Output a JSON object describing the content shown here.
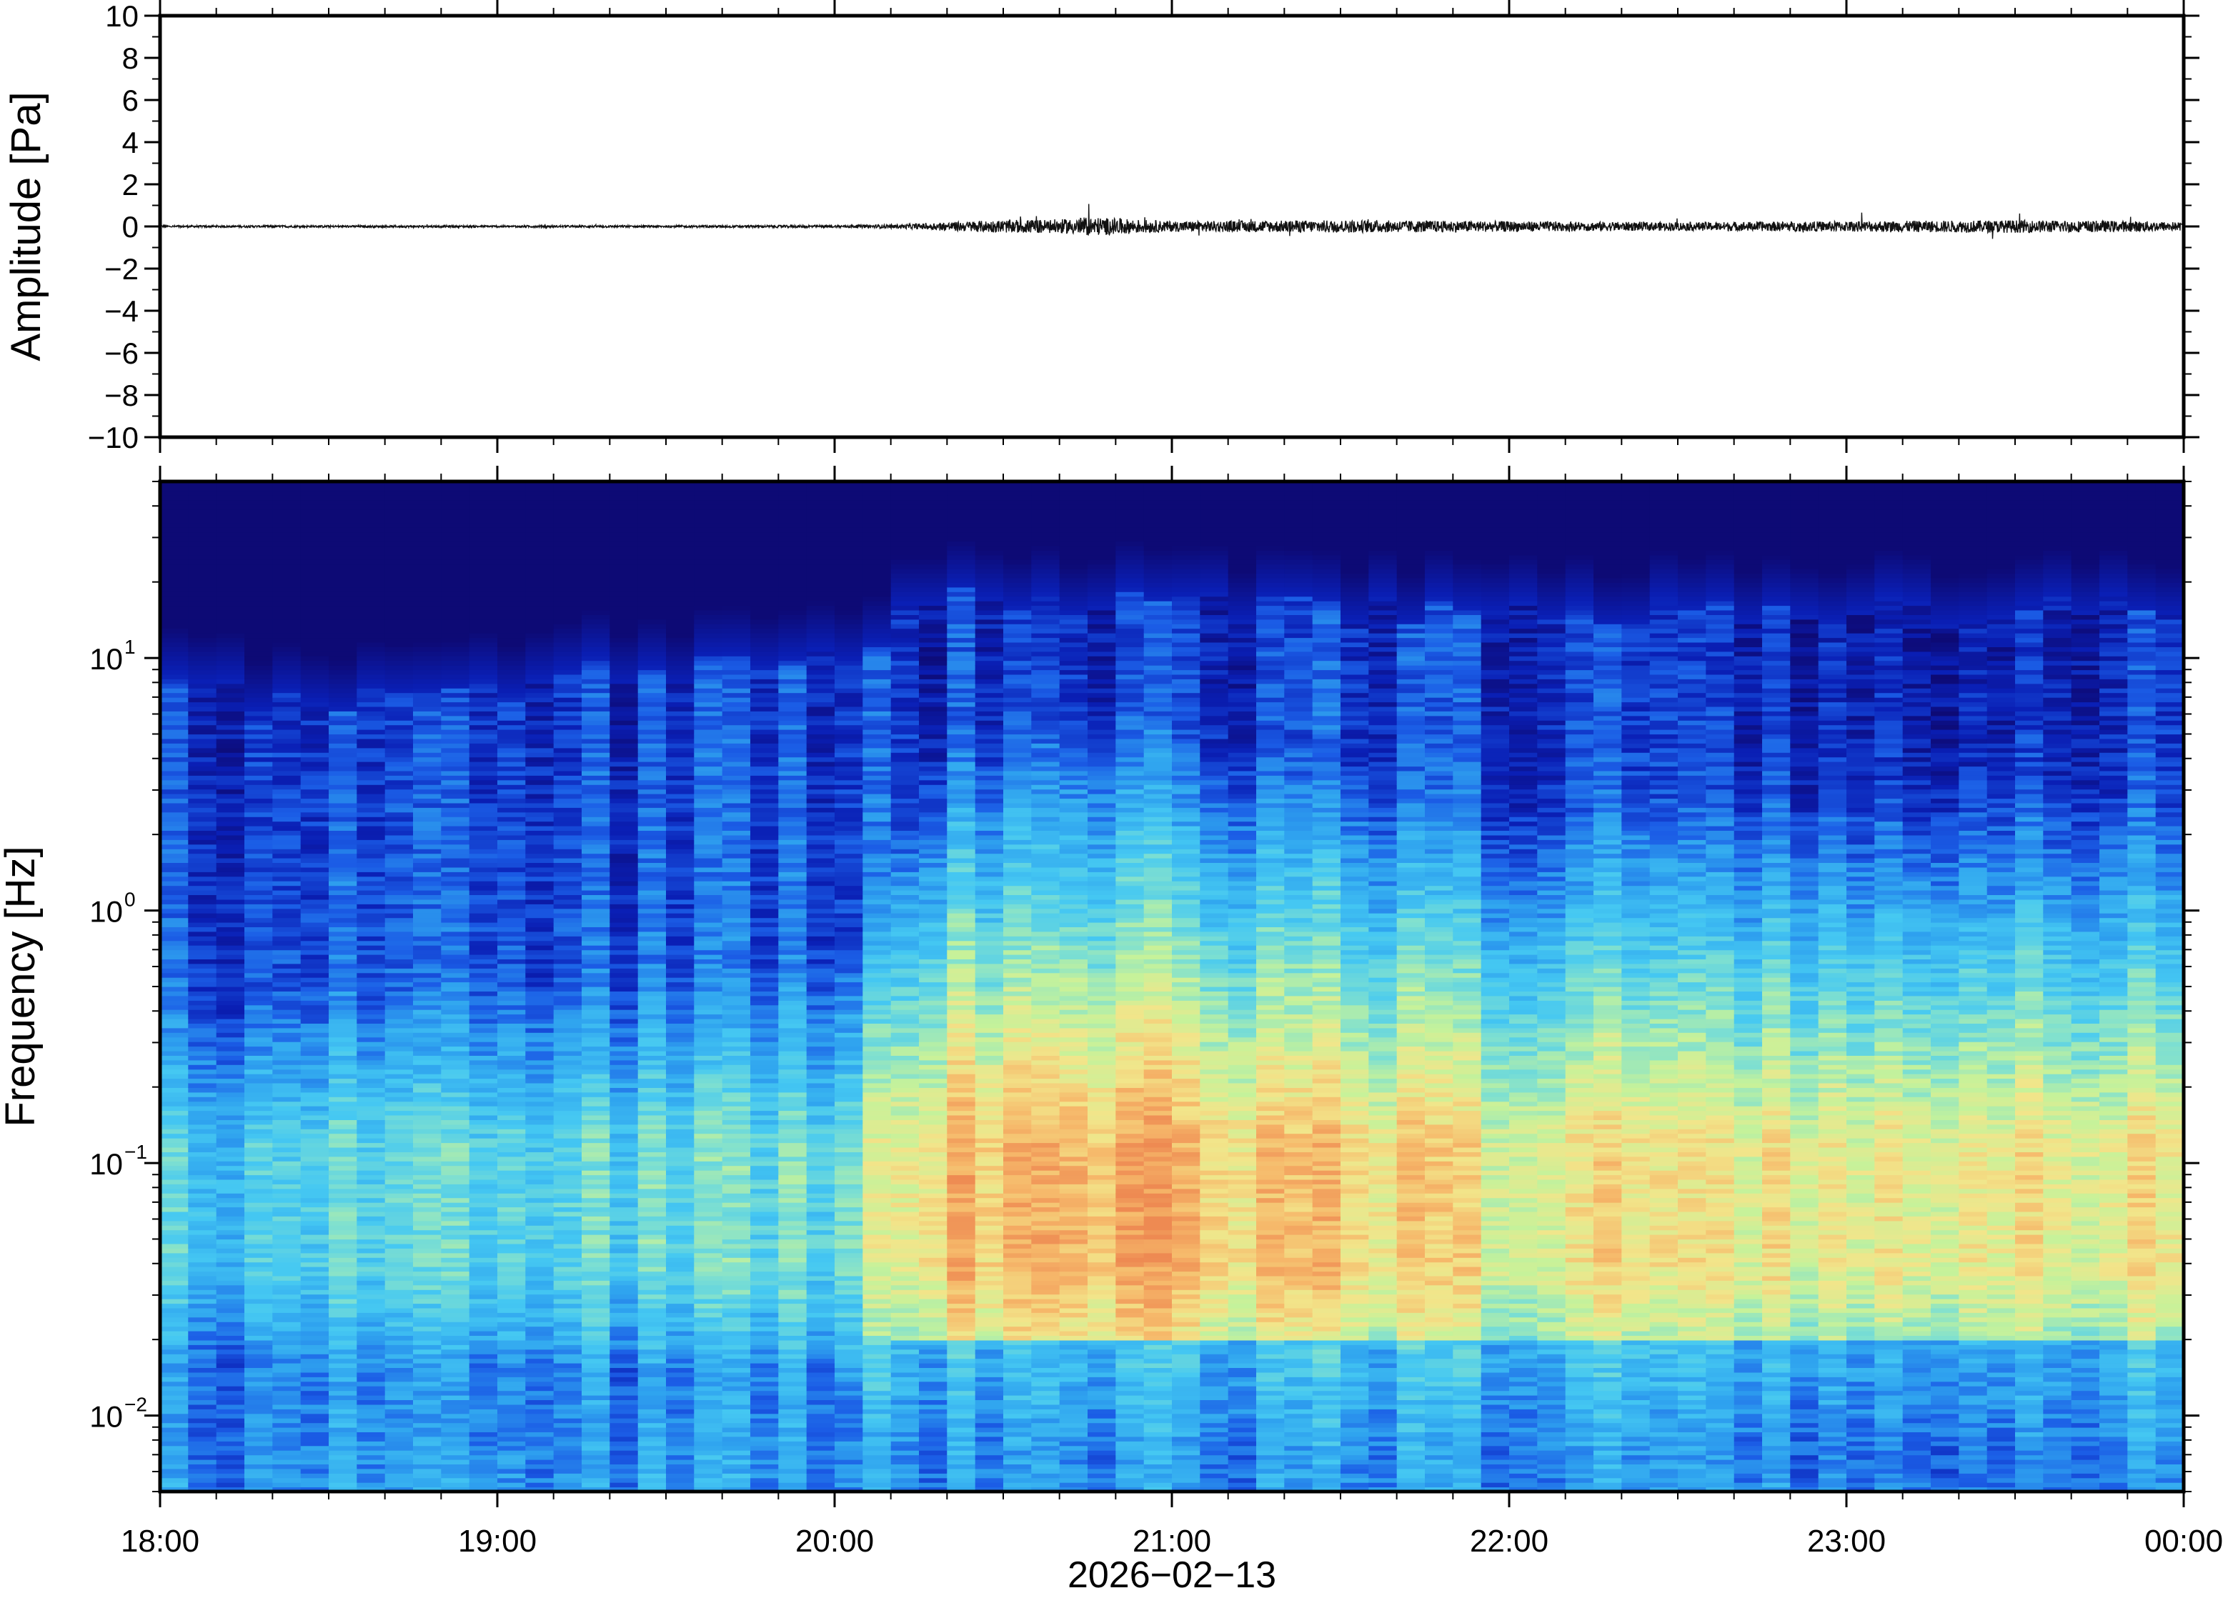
{
  "chart_data": [
    {
      "type": "line",
      "ylabel": "Amplitude [Pa]",
      "ylim": [
        -10,
        10
      ],
      "yticks": [
        "10",
        "8",
        "6",
        "4",
        "2",
        "0",
        "−2",
        "−4",
        "−6",
        "−8",
        "−10"
      ],
      "ytick_values": [
        10,
        8,
        6,
        4,
        2,
        0,
        -2,
        -4,
        -6,
        -8,
        -10
      ],
      "xlim": [
        "18:00",
        "00:00"
      ],
      "grid": false,
      "series": [
        {
          "description_free": true,
          "t_hours": [
            0.0,
            0.5,
            1.0,
            1.5,
            2.0,
            2.2,
            2.4,
            2.5,
            2.7,
            2.75,
            3.0,
            3.5,
            4.0,
            4.5,
            5.0,
            5.5,
            5.9,
            6.0
          ],
          "envelope_pa": [
            0.05,
            0.05,
            0.05,
            0.05,
            0.06,
            0.1,
            0.25,
            0.3,
            0.35,
            0.45,
            0.25,
            0.3,
            0.25,
            0.2,
            0.25,
            0.3,
            0.25,
            0.2
          ]
        }
      ]
    },
    {
      "type": "heatmap",
      "ylabel": "Frequency [Hz]",
      "xlabel": "2026−02−13",
      "yscale": "log",
      "ylim": [
        0.005,
        50
      ],
      "ytick_bases": [
        "10",
        "10",
        "10",
        "10"
      ],
      "ytick_exps": [
        "1",
        "0",
        "−1",
        "−2"
      ],
      "ytick_values": [
        10,
        1,
        0.1,
        0.01
      ],
      "xticks": [
        "18:00",
        "19:00",
        "20:00",
        "21:00",
        "22:00",
        "23:00",
        "00:00"
      ],
      "xtick_hours": [
        0,
        1,
        2,
        3,
        4,
        5,
        6
      ],
      "colormap": "jet",
      "colors": [
        "#0d0a75",
        "#0a1fb5",
        "#1b5de6",
        "#2fa3ef",
        "#45c8f2",
        "#7fe0d0",
        "#c6f29a",
        "#f2e58a",
        "#f6b86a",
        "#ee8a52"
      ],
      "time_segments": 72,
      "noise_ceiling_hz_by_hour": [
        [
          0,
          8
        ],
        [
          0.5,
          6
        ],
        [
          1.0,
          8
        ],
        [
          1.5,
          9
        ],
        [
          2.0,
          10
        ],
        [
          2.2,
          14
        ],
        [
          2.4,
          18
        ],
        [
          3.0,
          16
        ],
        [
          4.0,
          16
        ],
        [
          5.0,
          15
        ],
        [
          6.0,
          17
        ]
      ],
      "peak_band_hz": [
        0.04,
        0.12
      ],
      "peak_level_by_hour": [
        [
          0,
          0.45
        ],
        [
          2.0,
          0.5
        ],
        [
          2.3,
          0.85
        ],
        [
          2.8,
          0.9
        ],
        [
          4.0,
          0.75
        ],
        [
          5.5,
          0.8
        ],
        [
          6.0,
          0.75
        ]
      ]
    }
  ]
}
